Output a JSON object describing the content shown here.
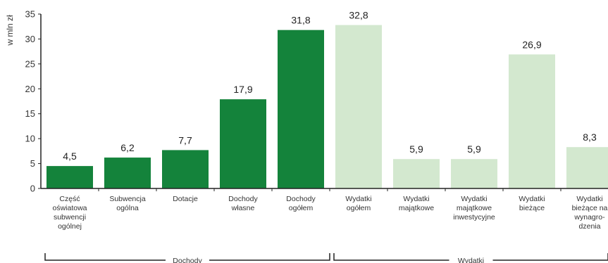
{
  "chart_data": {
    "type": "bar",
    "ylabel": "w mln zł",
    "ylim": [
      0,
      35
    ],
    "yticks": [
      0,
      5,
      10,
      15,
      20,
      25,
      30,
      35
    ],
    "grid": false,
    "colors": {
      "dochody": "#14833b",
      "wydatki": "#d3e8cf"
    },
    "bars": [
      {
        "label": [
          "Część",
          "oświatowa",
          "subwencji",
          "ogólnej"
        ],
        "value": 4.5,
        "value_label": "4,5",
        "group": "dochody"
      },
      {
        "label": [
          "Subwencja",
          "ogólna"
        ],
        "value": 6.2,
        "value_label": "6,2",
        "group": "dochody"
      },
      {
        "label": [
          "Dotacje"
        ],
        "value": 7.7,
        "value_label": "7,7",
        "group": "dochody"
      },
      {
        "label": [
          "Dochody",
          "własne"
        ],
        "value": 17.9,
        "value_label": "17,9",
        "group": "dochody"
      },
      {
        "label": [
          "Dochody",
          "ogółem"
        ],
        "value": 31.8,
        "value_label": "31,8",
        "group": "dochody"
      },
      {
        "label": [
          "Wydatki",
          "ogółem"
        ],
        "value": 32.8,
        "value_label": "32,8",
        "group": "wydatki"
      },
      {
        "label": [
          "Wydatki",
          "majątkowe"
        ],
        "value": 5.9,
        "value_label": "5,9",
        "group": "wydatki"
      },
      {
        "label": [
          "Wydatki",
          "majątkowe",
          "inwestycyjne"
        ],
        "value": 5.9,
        "value_label": "5,9",
        "group": "wydatki"
      },
      {
        "label": [
          "Wydatki",
          "bieżące"
        ],
        "value": 26.9,
        "value_label": "26,9",
        "group": "wydatki"
      },
      {
        "label": [
          "Wydatki",
          "bieżące na",
          "wynagro-",
          "dzenia"
        ],
        "value": 8.3,
        "value_label": "8,3",
        "group": "wydatki"
      }
    ],
    "groups": [
      {
        "id": "dochodyGroup",
        "key": "dochody",
        "label": "Dochody"
      },
      {
        "id": "wydatkiGroup",
        "key": "wydatki",
        "label": "Wydatki"
      }
    ]
  }
}
